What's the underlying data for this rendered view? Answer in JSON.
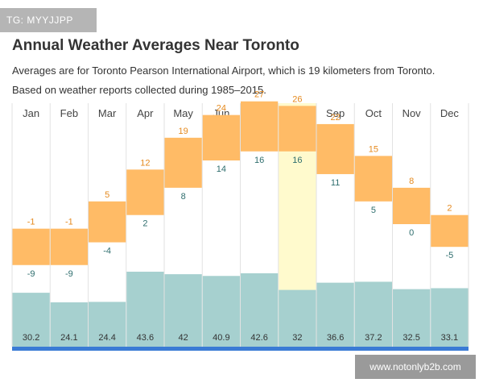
{
  "tag": "TG: MYYJJPP",
  "header": {
    "title": "Annual Weather Averages Near Toronto",
    "subtitle_1": "Averages are for Toronto Pearson International Airport, which is 19 kilometers from Toronto.",
    "subtitle_2": "Based on weather reports collected during 1985–2015."
  },
  "watermark": "www.notonlyb2b.com",
  "chart_data": {
    "type": "bar",
    "categories": [
      "Jan",
      "Feb",
      "Mar",
      "Apr",
      "May",
      "Jun",
      "Jul",
      "Aug",
      "Sep",
      "Oct",
      "Nov",
      "Dec"
    ],
    "series": [
      {
        "values": [
          -1,
          -1,
          5,
          12,
          19,
          24,
          27,
          26,
          22,
          15,
          8,
          2
        ]
      },
      {
        "values": [
          -9,
          -9,
          -4,
          2,
          8,
          14,
          16,
          16,
          11,
          5,
          0,
          -5
        ]
      },
      {
        "values": [
          30.2,
          24.1,
          24.4,
          43.6,
          42,
          40.9,
          42.6,
          32,
          36.6,
          37.2,
          32.5,
          33.1
        ]
      }
    ],
    "highlight_category": "Aug",
    "colors": {
      "temperature_band": "#ffbb66",
      "high_label": "#e58a1f",
      "low_label": "#2f6e6e",
      "precipitation_bar": "#a6d0cf",
      "highlight_column": "#fffacd",
      "baseline": "#3a7bd5"
    },
    "grid": true
  }
}
